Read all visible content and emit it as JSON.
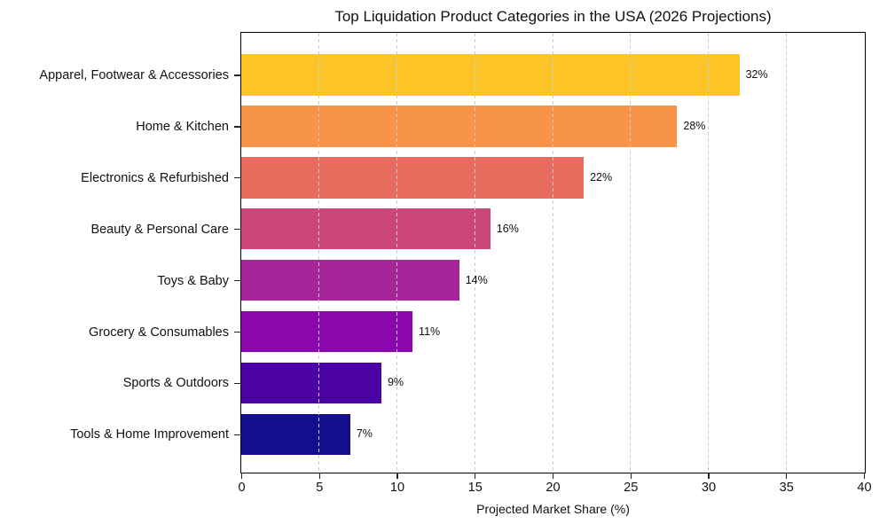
{
  "chart_data": {
    "type": "bar",
    "orientation": "horizontal",
    "title": "Top Liquidation Product Categories in the USA (2026 Projections)",
    "xlabel": "Projected Market Share (%)",
    "ylabel": "",
    "xlim": [
      0,
      40
    ],
    "xticks": [
      0,
      5,
      10,
      15,
      20,
      25,
      30,
      35,
      40
    ],
    "grid": "vertical dashed gridlines, drawn over bars",
    "legend": "none",
    "categories": [
      "Apparel, Footwear & Accessories",
      "Home & Kitchen",
      "Electronics & Refurbished",
      "Beauty & Personal Care",
      "Toys & Baby",
      "Grocery & Consumables",
      "Sports & Outdoors",
      "Tools & Home Improvement"
    ],
    "values": [
      32,
      28,
      22,
      16,
      14,
      11,
      9,
      7
    ],
    "value_labels": [
      "32%",
      "28%",
      "22%",
      "16%",
      "14%",
      "11%",
      "9%",
      "7%"
    ],
    "bar_colors": [
      "#FCC427",
      "#F7944A",
      "#E76D5E",
      "#CB477A",
      "#A62598",
      "#8A07AD",
      "#4B02A2",
      "#140E8C"
    ]
  },
  "style": {
    "background": "#ffffff",
    "spine_color": "#000000",
    "grid_color": "#cdcdcd",
    "tick_color": "#222222",
    "text_color": "#111111"
  }
}
